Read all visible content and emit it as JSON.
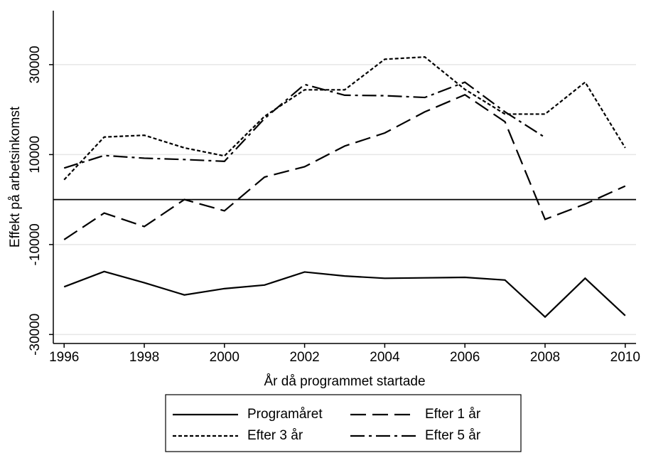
{
  "chart_data": {
    "type": "line",
    "x_label": "År då programmet startade",
    "y_label": "Effekt på arbetsinkomst",
    "x": [
      1996,
      1997,
      1998,
      1999,
      2000,
      2001,
      2002,
      2003,
      2004,
      2005,
      2006,
      2007,
      2008,
      2009,
      2010
    ],
    "series": [
      {
        "name": "Programåret",
        "color": "#000000",
        "line_style": "solid",
        "values": [
          -19400,
          -16000,
          -18500,
          -21200,
          -19800,
          -19000,
          -16100,
          -17000,
          -17500,
          -17400,
          -17300,
          -17900,
          -26100,
          -17500,
          -25800
        ]
      },
      {
        "name": "Efter 1 år",
        "color": "#000000",
        "line_style": "long-dash",
        "values": [
          -8900,
          -3000,
          -6000,
          0,
          -2500,
          5000,
          7300,
          11900,
          14800,
          19500,
          23300,
          17300,
          -4400,
          -1000,
          3000
        ]
      },
      {
        "name": "Efter 3 år",
        "color": "#000000",
        "line_style": "short-dash",
        "values": [
          4400,
          13900,
          14300,
          11500,
          9700,
          18500,
          24400,
          24400,
          31200,
          31700,
          24500,
          19000,
          19000,
          26100,
          11500
        ]
      },
      {
        "name": "Efter 5 år",
        "color": "#000000",
        "line_style": "dash-dot",
        "values": [
          7000,
          9800,
          9200,
          8900,
          8500,
          18000,
          25600,
          23200,
          23100,
          22700,
          26100,
          19500,
          13800,
          null,
          null
        ]
      }
    ],
    "xlim": [
      1995.73,
      2010.27
    ],
    "xticks": [
      1996,
      1998,
      2000,
      2002,
      2004,
      2006,
      2008,
      2010
    ],
    "ylim": [
      -32000,
      42000
    ],
    "yticks": [
      -30000,
      -10000,
      10000,
      30000
    ],
    "grid": true,
    "reference_line": 0,
    "legend": "bottom"
  }
}
